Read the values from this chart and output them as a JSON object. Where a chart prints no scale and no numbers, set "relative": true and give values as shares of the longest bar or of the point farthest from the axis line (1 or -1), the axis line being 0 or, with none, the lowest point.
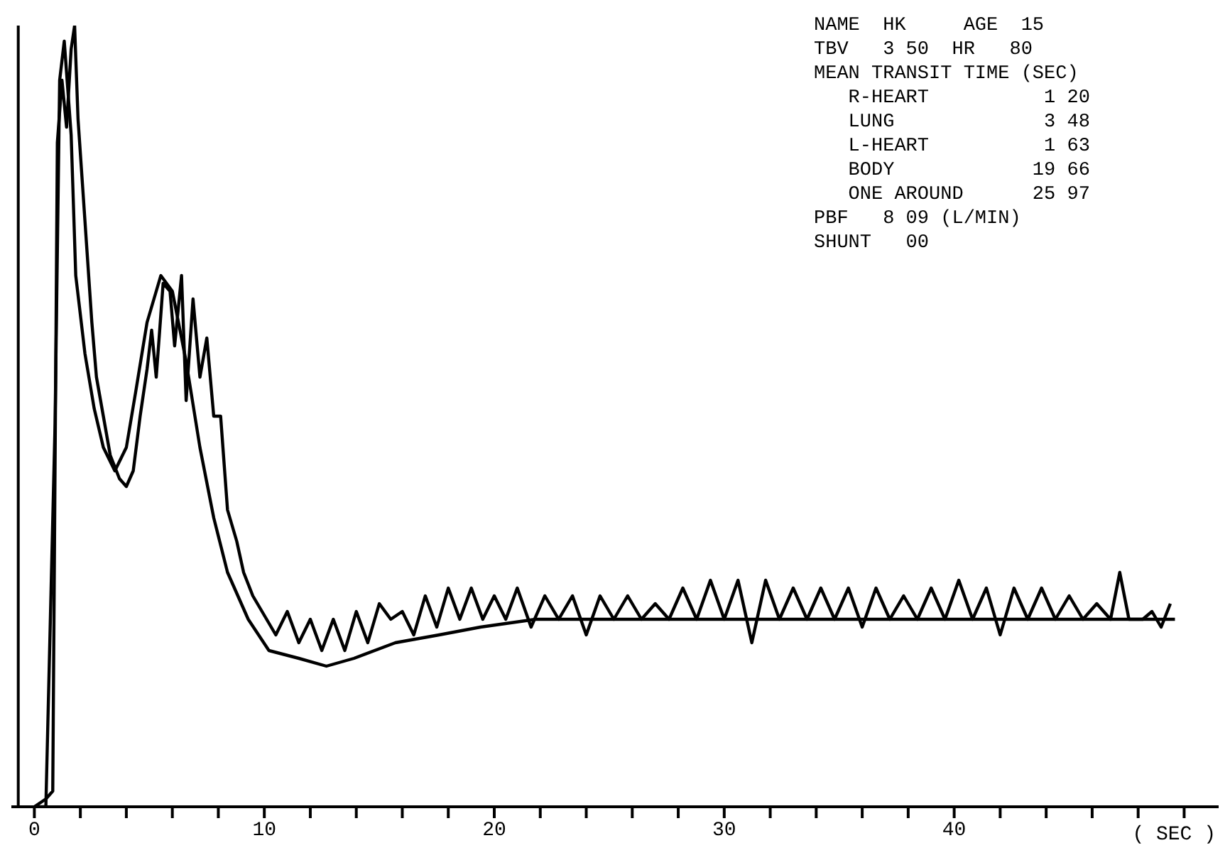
{
  "chart_data": {
    "type": "line",
    "relative": true,
    "xlabel": "( SEC )",
    "xlim": [
      -1,
      51.5
    ],
    "xticks": [
      0,
      {
        "value": 2,
        "label": null
      },
      {
        "value": 4,
        "label": null
      },
      {
        "value": 6,
        "label": null
      },
      {
        "value": 8,
        "label": null
      },
      10,
      {
        "value": 12,
        "label": null
      },
      {
        "value": 14,
        "label": null
      },
      {
        "value": 16,
        "label": null
      },
      {
        "value": 18,
        "label": null
      },
      20,
      {
        "value": 22,
        "label": null
      },
      {
        "value": 24,
        "label": null
      },
      {
        "value": 26,
        "label": null
      },
      {
        "value": 28,
        "label": null
      },
      30,
      {
        "value": 32,
        "label": null
      },
      {
        "value": 34,
        "label": null
      },
      {
        "value": 36,
        "label": null
      },
      {
        "value": 38,
        "label": null
      },
      40,
      {
        "value": 42,
        "label": null
      },
      {
        "value": 44,
        "label": null
      },
      {
        "value": 46,
        "label": null
      },
      {
        "value": 48,
        "label": null
      },
      {
        "value": 50,
        "label": null
      }
    ],
    "grid": false,
    "legend": false,
    "marker": "none",
    "line_style": "solid",
    "ref_lines": [
      {
        "axis": "x",
        "value": -0.7,
        "color": "#000000"
      }
    ],
    "annotations": [
      "NAME  HK     AGE  15",
      "TBV   3 50  HR   80",
      "MEAN TRANSIT TIME (SEC)",
      "   R-HEART          1 20",
      "   LUNG             3 48",
      "   L-HEART          1 63",
      "   BODY            19 66",
      "   ONE AROUND      25 97",
      "PBF   8 09 (L/MIN)",
      "SHUNT   00"
    ],
    "series": [
      {
        "color": "#000000",
        "x": [
          0,
          0.5,
          0.8,
          1.0,
          1.2,
          1.4,
          1.6,
          1.75,
          1.9,
          2.2,
          2.5,
          2.7,
          3.0,
          3.3,
          3.7,
          4.0,
          4.3,
          4.6,
          4.9,
          5.1,
          5.3,
          5.6,
          5.9,
          6.1,
          6.4,
          6.6,
          6.9,
          7.2,
          7.5,
          7.8,
          8.1,
          8.4,
          8.8,
          9.1,
          9.5,
          9.9,
          10.5,
          11.0,
          11.5,
          12.0,
          12.5,
          13.0,
          13.5,
          14.0,
          14.5,
          15.0,
          15.5,
          16.0,
          16.5,
          17.0,
          17.5,
          18.0,
          18.5,
          19.0,
          19.5,
          20.0,
          20.5,
          21.0,
          21.6,
          22.2,
          22.8,
          23.4,
          24.0,
          24.6,
          25.2,
          25.8,
          26.4,
          27.0,
          27.6,
          28.2,
          28.8,
          29.4,
          30.0,
          30.6,
          31.2,
          31.8,
          32.4,
          33.0,
          33.6,
          34.2,
          34.8,
          35.4,
          36.0,
          36.6,
          37.2,
          37.8,
          38.4,
          39.0,
          39.6,
          40.2,
          40.8,
          41.4,
          42.0,
          42.6,
          43.2,
          43.8,
          44.4,
          45.0,
          45.6,
          46.2,
          46.8,
          47.2,
          47.6,
          48.2,
          48.6,
          49.0,
          49.4
        ],
        "values": [
          0,
          0.01,
          0.02,
          0.85,
          0.93,
          0.87,
          0.97,
          1.0,
          0.88,
          0.75,
          0.62,
          0.55,
          0.5,
          0.45,
          0.42,
          0.41,
          0.43,
          0.5,
          0.56,
          0.61,
          0.55,
          0.67,
          0.66,
          0.59,
          0.68,
          0.52,
          0.65,
          0.55,
          0.6,
          0.5,
          0.5,
          0.38,
          0.34,
          0.3,
          0.27,
          0.25,
          0.22,
          0.25,
          0.21,
          0.24,
          0.2,
          0.24,
          0.2,
          0.25,
          0.21,
          0.26,
          0.24,
          0.25,
          0.22,
          0.27,
          0.23,
          0.28,
          0.24,
          0.28,
          0.24,
          0.27,
          0.24,
          0.28,
          0.23,
          0.27,
          0.24,
          0.27,
          0.22,
          0.27,
          0.24,
          0.27,
          0.24,
          0.26,
          0.24,
          0.28,
          0.24,
          0.29,
          0.24,
          0.29,
          0.21,
          0.29,
          0.24,
          0.28,
          0.24,
          0.28,
          0.24,
          0.28,
          0.23,
          0.28,
          0.24,
          0.27,
          0.24,
          0.28,
          0.24,
          0.29,
          0.24,
          0.28,
          0.22,
          0.28,
          0.24,
          0.28,
          0.24,
          0.27,
          0.24,
          0.26,
          0.24,
          0.3,
          0.24,
          0.24,
          0.25,
          0.23,
          0.26
        ]
      },
      {
        "color": "#000000",
        "x": [
          0,
          0.5,
          0.9,
          1.1,
          1.3,
          1.6,
          1.8,
          2.2,
          2.6,
          3.0,
          3.5,
          4.0,
          4.4,
          4.9,
          5.5,
          6.0,
          6.6,
          7.2,
          7.8,
          8.4,
          9.3,
          10.2,
          11.5,
          12.7,
          13.9,
          15.7,
          17.6,
          19.4,
          21.8,
          26,
          32,
          41,
          49.6
        ],
        "values": [
          0,
          0.0,
          0.49,
          0.93,
          0.98,
          0.86,
          0.68,
          0.58,
          0.51,
          0.46,
          0.43,
          0.46,
          0.53,
          0.62,
          0.68,
          0.66,
          0.57,
          0.46,
          0.37,
          0.3,
          0.24,
          0.2,
          0.19,
          0.18,
          0.19,
          0.21,
          0.22,
          0.23,
          0.24,
          0.24,
          0.24,
          0.24,
          0.24
        ]
      }
    ]
  }
}
